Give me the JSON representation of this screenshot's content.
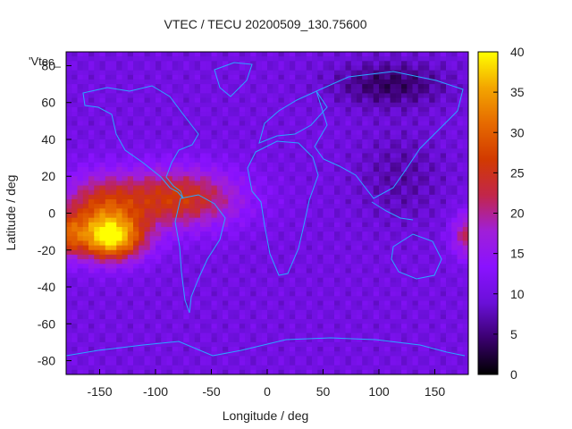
{
  "chart_data": {
    "type": "heatmap",
    "title": "VTEC / TECU 20200509_130.75600",
    "xlabel": "Longitude / deg",
    "ylabel": "Latitude / deg",
    "legend_entry": "'Vtec_",
    "xlim": [
      -180,
      180
    ],
    "ylim": [
      -87.5,
      87.5
    ],
    "x_ticks": [
      -150,
      -100,
      -50,
      0,
      50,
      100,
      150
    ],
    "y_ticks": [
      -80,
      -60,
      -40,
      -20,
      0,
      20,
      40,
      60,
      80
    ],
    "colorbar": {
      "range": [
        0,
        40
      ],
      "ticks": [
        0,
        5,
        10,
        15,
        20,
        25,
        30,
        35,
        40
      ],
      "palette": [
        "#000000",
        "#3a006e",
        "#6a10d8",
        "#8a12ff",
        "#a01fd8",
        "#c2264a",
        "#d23a00",
        "#e66a00",
        "#f3a500",
        "#ffff00"
      ]
    },
    "colormap_grid_note": "",
    "features": {
      "pacific_equatorial_high": {
        "peak_lon": -140,
        "peak_lat": -15,
        "peak_vtec": 37
      },
      "atlantic_band_high": {
        "center_lon": -80,
        "center_lat": 8,
        "vtec": 27
      },
      "east_edge_high": {
        "center_lon": 180,
        "center_lat": -12,
        "vtec": 24
      },
      "north_polar_low": {
        "center_lon": 110,
        "center_lat": 70,
        "vtec": 4
      },
      "background_vtec": 10
    }
  },
  "text": {
    "colorbar_tick_labels": [
      "0",
      "5",
      "10",
      "15",
      "20",
      "25",
      "30",
      "35",
      "40"
    ]
  }
}
